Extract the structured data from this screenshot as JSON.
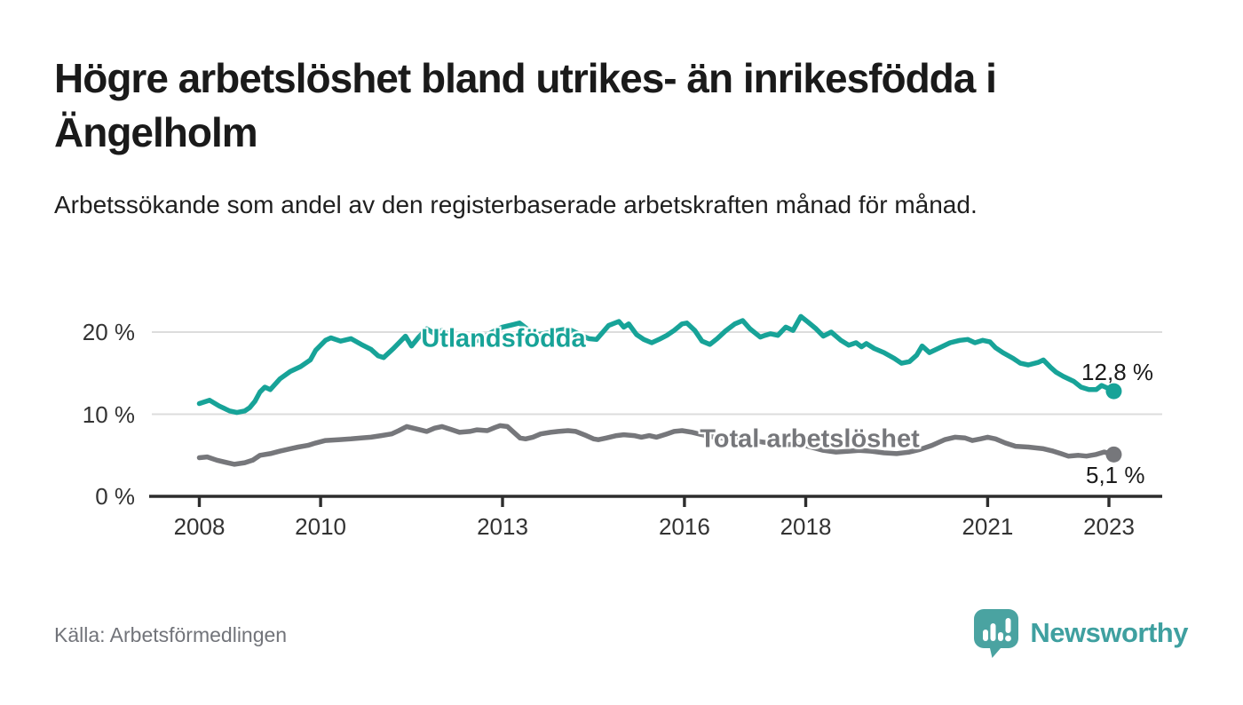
{
  "chart_data": {
    "type": "line",
    "title": "Högre arbetslöshet bland utrikes- än inrikesfödda i Ängelholm",
    "subtitle": "Arbetssökande som andel av den registerbaserade arbetskraften månad för månad.",
    "grid": "horizontal-only",
    "legend_position": "inline-labels-on-lines",
    "x_axis": {
      "range_years": [
        2008,
        2023.4
      ],
      "ticks": [
        {
          "year": 2008,
          "label": "2008"
        },
        {
          "year": 2010,
          "label": "2010"
        },
        {
          "year": 2013,
          "label": "2013"
        },
        {
          "year": 2016,
          "label": "2016"
        },
        {
          "year": 2018,
          "label": "2018"
        },
        {
          "year": 2021,
          "label": "2021"
        },
        {
          "year": 2023,
          "label": "2023"
        }
      ]
    },
    "y_axis": {
      "unit": "%",
      "range": [
        0,
        22
      ],
      "ticks": [
        {
          "value": 20,
          "label": "20 %"
        },
        {
          "value": 10,
          "label": "10 %"
        },
        {
          "value": 0,
          "label": "0 %"
        }
      ]
    },
    "series": [
      {
        "name": "Utlandsfödda",
        "color": "#17a398",
        "end_value": 12.8,
        "end_label": "12,8 %",
        "points": [
          [
            2008.0,
            11.3
          ],
          [
            2008.17,
            11.7
          ],
          [
            2008.33,
            11.0
          ],
          [
            2008.5,
            10.4
          ],
          [
            2008.62,
            10.2
          ],
          [
            2008.75,
            10.4
          ],
          [
            2008.83,
            10.8
          ],
          [
            2008.92,
            11.6
          ],
          [
            2009.0,
            12.7
          ],
          [
            2009.08,
            13.3
          ],
          [
            2009.17,
            13.0
          ],
          [
            2009.33,
            14.3
          ],
          [
            2009.5,
            15.2
          ],
          [
            2009.67,
            15.8
          ],
          [
            2009.83,
            16.6
          ],
          [
            2009.92,
            17.8
          ],
          [
            2010.08,
            19.0
          ],
          [
            2010.17,
            19.3
          ],
          [
            2010.33,
            18.9
          ],
          [
            2010.5,
            19.2
          ],
          [
            2010.67,
            18.5
          ],
          [
            2010.83,
            17.9
          ],
          [
            2010.95,
            17.1
          ],
          [
            2011.04,
            16.9
          ],
          [
            2011.2,
            18.0
          ],
          [
            2011.4,
            19.5
          ],
          [
            2011.5,
            18.3
          ],
          [
            2011.62,
            19.4
          ],
          [
            2011.75,
            20.4
          ],
          [
            2011.88,
            19.8
          ],
          [
            2012.0,
            20.2
          ],
          [
            2012.17,
            19.5
          ],
          [
            2012.33,
            19.0
          ],
          [
            2012.5,
            18.7
          ],
          [
            2012.67,
            19.3
          ],
          [
            2012.83,
            20.0
          ],
          [
            2013.0,
            20.6
          ],
          [
            2013.17,
            20.9
          ],
          [
            2013.28,
            21.1
          ],
          [
            2013.42,
            20.3
          ],
          [
            2013.58,
            19.7
          ],
          [
            2013.75,
            19.9
          ],
          [
            2013.92,
            20.2
          ],
          [
            2014.08,
            20.4
          ],
          [
            2014.25,
            19.8
          ],
          [
            2014.42,
            19.2
          ],
          [
            2014.55,
            19.1
          ],
          [
            2014.75,
            20.8
          ],
          [
            2014.92,
            21.3
          ],
          [
            2015.0,
            20.6
          ],
          [
            2015.08,
            21.0
          ],
          [
            2015.21,
            19.7
          ],
          [
            2015.33,
            19.1
          ],
          [
            2015.46,
            18.7
          ],
          [
            2015.58,
            19.1
          ],
          [
            2015.71,
            19.6
          ],
          [
            2015.83,
            20.2
          ],
          [
            2015.96,
            21.0
          ],
          [
            2016.04,
            21.1
          ],
          [
            2016.17,
            20.2
          ],
          [
            2016.29,
            18.9
          ],
          [
            2016.42,
            18.5
          ],
          [
            2016.54,
            19.2
          ],
          [
            2016.67,
            20.1
          ],
          [
            2016.83,
            21.0
          ],
          [
            2016.96,
            21.4
          ],
          [
            2017.08,
            20.4
          ],
          [
            2017.25,
            19.4
          ],
          [
            2017.33,
            19.6
          ],
          [
            2017.42,
            19.8
          ],
          [
            2017.54,
            19.6
          ],
          [
            2017.67,
            20.6
          ],
          [
            2017.79,
            20.2
          ],
          [
            2017.92,
            21.9
          ],
          [
            2018.04,
            21.2
          ],
          [
            2018.17,
            20.4
          ],
          [
            2018.29,
            19.5
          ],
          [
            2018.42,
            20.0
          ],
          [
            2018.58,
            19.0
          ],
          [
            2018.71,
            18.4
          ],
          [
            2018.83,
            18.7
          ],
          [
            2018.92,
            18.2
          ],
          [
            2019.0,
            18.6
          ],
          [
            2019.13,
            18.0
          ],
          [
            2019.29,
            17.5
          ],
          [
            2019.46,
            16.8
          ],
          [
            2019.58,
            16.2
          ],
          [
            2019.71,
            16.4
          ],
          [
            2019.83,
            17.2
          ],
          [
            2019.92,
            18.3
          ],
          [
            2020.04,
            17.5
          ],
          [
            2020.21,
            18.1
          ],
          [
            2020.38,
            18.7
          ],
          [
            2020.54,
            19.0
          ],
          [
            2020.67,
            19.1
          ],
          [
            2020.79,
            18.7
          ],
          [
            2020.92,
            19.0
          ],
          [
            2021.04,
            18.8
          ],
          [
            2021.13,
            18.1
          ],
          [
            2021.25,
            17.5
          ],
          [
            2021.42,
            16.8
          ],
          [
            2021.54,
            16.2
          ],
          [
            2021.67,
            16.0
          ],
          [
            2021.83,
            16.3
          ],
          [
            2021.92,
            16.6
          ],
          [
            2022.04,
            15.7
          ],
          [
            2022.13,
            15.1
          ],
          [
            2022.25,
            14.6
          ],
          [
            2022.42,
            14.0
          ],
          [
            2022.54,
            13.3
          ],
          [
            2022.67,
            13.0
          ],
          [
            2022.79,
            13.0
          ],
          [
            2022.88,
            13.5
          ],
          [
            2023.0,
            13.1
          ],
          [
            2023.08,
            12.8
          ]
        ]
      },
      {
        "name": "Total arbetslöshet",
        "color": "#76777b",
        "end_value": 5.1,
        "end_label": "5,1 %",
        "points": [
          [
            2008.0,
            4.7
          ],
          [
            2008.13,
            4.8
          ],
          [
            2008.29,
            4.4
          ],
          [
            2008.46,
            4.1
          ],
          [
            2008.58,
            3.9
          ],
          [
            2008.75,
            4.1
          ],
          [
            2008.88,
            4.4
          ],
          [
            2009.0,
            5.0
          ],
          [
            2009.17,
            5.2
          ],
          [
            2009.33,
            5.5
          ],
          [
            2009.5,
            5.8
          ],
          [
            2009.63,
            6.0
          ],
          [
            2009.79,
            6.2
          ],
          [
            2009.92,
            6.5
          ],
          [
            2010.08,
            6.8
          ],
          [
            2010.29,
            6.9
          ],
          [
            2010.5,
            7.0
          ],
          [
            2010.67,
            7.1
          ],
          [
            2010.83,
            7.2
          ],
          [
            2011.0,
            7.4
          ],
          [
            2011.17,
            7.6
          ],
          [
            2011.29,
            8.0
          ],
          [
            2011.42,
            8.5
          ],
          [
            2011.58,
            8.2
          ],
          [
            2011.75,
            7.9
          ],
          [
            2011.88,
            8.3
          ],
          [
            2012.0,
            8.5
          ],
          [
            2012.17,
            8.1
          ],
          [
            2012.29,
            7.8
          ],
          [
            2012.46,
            7.9
          ],
          [
            2012.58,
            8.1
          ],
          [
            2012.75,
            8.0
          ],
          [
            2012.88,
            8.4
          ],
          [
            2012.96,
            8.6
          ],
          [
            2013.08,
            8.5
          ],
          [
            2013.17,
            7.9
          ],
          [
            2013.29,
            7.1
          ],
          [
            2013.38,
            7.0
          ],
          [
            2013.5,
            7.2
          ],
          [
            2013.63,
            7.6
          ],
          [
            2013.79,
            7.8
          ],
          [
            2013.92,
            7.9
          ],
          [
            2014.08,
            8.0
          ],
          [
            2014.21,
            7.9
          ],
          [
            2014.38,
            7.4
          ],
          [
            2014.5,
            7.0
          ],
          [
            2014.58,
            6.9
          ],
          [
            2014.71,
            7.1
          ],
          [
            2014.88,
            7.4
          ],
          [
            2015.0,
            7.5
          ],
          [
            2015.17,
            7.4
          ],
          [
            2015.29,
            7.2
          ],
          [
            2015.42,
            7.4
          ],
          [
            2015.54,
            7.2
          ],
          [
            2015.71,
            7.6
          ],
          [
            2015.83,
            7.9
          ],
          [
            2015.96,
            8.0
          ],
          [
            2016.13,
            7.8
          ],
          [
            2016.29,
            7.5
          ],
          [
            2016.5,
            7.2
          ],
          [
            2016.71,
            7.0
          ],
          [
            2016.88,
            7.1
          ],
          [
            2017.08,
            6.9
          ],
          [
            2017.29,
            6.6
          ],
          [
            2017.5,
            6.4
          ],
          [
            2017.71,
            6.3
          ],
          [
            2017.88,
            6.4
          ],
          [
            2018.08,
            6.0
          ],
          [
            2018.29,
            5.6
          ],
          [
            2018.5,
            5.4
          ],
          [
            2018.71,
            5.5
          ],
          [
            2018.88,
            5.6
          ],
          [
            2019.08,
            5.5
          ],
          [
            2019.29,
            5.3
          ],
          [
            2019.5,
            5.2
          ],
          [
            2019.71,
            5.4
          ],
          [
            2019.88,
            5.7
          ],
          [
            2020.08,
            6.2
          ],
          [
            2020.29,
            6.9
          ],
          [
            2020.46,
            7.2
          ],
          [
            2020.63,
            7.1
          ],
          [
            2020.75,
            6.8
          ],
          [
            2020.88,
            7.0
          ],
          [
            2021.0,
            7.2
          ],
          [
            2021.13,
            7.0
          ],
          [
            2021.29,
            6.5
          ],
          [
            2021.46,
            6.1
          ],
          [
            2021.67,
            6.0
          ],
          [
            2021.92,
            5.8
          ],
          [
            2022.08,
            5.5
          ],
          [
            2022.21,
            5.2
          ],
          [
            2022.33,
            4.9
          ],
          [
            2022.5,
            5.0
          ],
          [
            2022.63,
            4.9
          ],
          [
            2022.79,
            5.1
          ],
          [
            2022.92,
            5.4
          ],
          [
            2023.08,
            5.1
          ]
        ]
      }
    ],
    "colors": {
      "axis_line": "#2d2d2d",
      "gridline": "#dcdcdc",
      "axis_text": "#333333"
    }
  },
  "footer": {
    "source": "Källa: Arbetsförmedlingen",
    "brand_name": "Newsworthy",
    "brand_color": "#3fa0a0",
    "brand_icon": "newsworthy-speech-bubble-barchart-icon"
  }
}
